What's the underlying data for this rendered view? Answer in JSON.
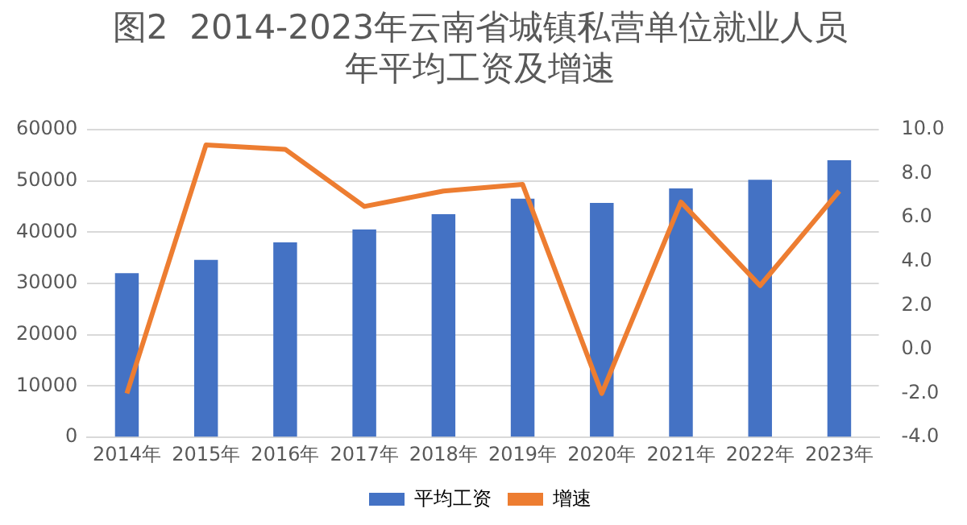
{
  "chart_data": {
    "type": "bar",
    "title": [
      "图2  2014-2023年云南省城镇私营单位就业人员",
      "年平均工资及增速"
    ],
    "categories": [
      "2014年",
      "2015年",
      "2016年",
      "2017年",
      "2018年",
      "2019年",
      "2020年",
      "2021年",
      "2022年",
      "2023年"
    ],
    "series": [
      {
        "name": "平均工资",
        "color": "#4472c4",
        "values": [
          32000,
          34600,
          38000,
          40500,
          43500,
          46500,
          45700,
          48500,
          50200,
          54000
        ]
      },
      {
        "name": "增速",
        "type": "line",
        "axis": "y2",
        "color": "#ed7d31",
        "marker": "none",
        "values": [
          -2.0,
          9.3,
          9.1,
          6.5,
          7.2,
          7.5,
          -2.0,
          6.7,
          2.9,
          7.2
        ]
      }
    ],
    "ylim": [
      0,
      60000
    ],
    "yticks": [
      0,
      10000,
      20000,
      30000,
      40000,
      50000,
      60000
    ],
    "y2lim": [
      -4,
      10
    ],
    "y2ticks": [
      {
        "value": -4,
        "label": "-4.0"
      },
      {
        "value": -2,
        "label": "-2.0"
      },
      {
        "value": 0,
        "label": "0.0"
      },
      {
        "value": 2,
        "label": "2.0"
      },
      {
        "value": 4,
        "label": "4.0"
      },
      {
        "value": 6,
        "label": "6.0"
      },
      {
        "value": 8,
        "label": "8.0"
      },
      {
        "value": 10,
        "label": "10.0"
      }
    ],
    "grid": "y",
    "legend": "bottom"
  }
}
